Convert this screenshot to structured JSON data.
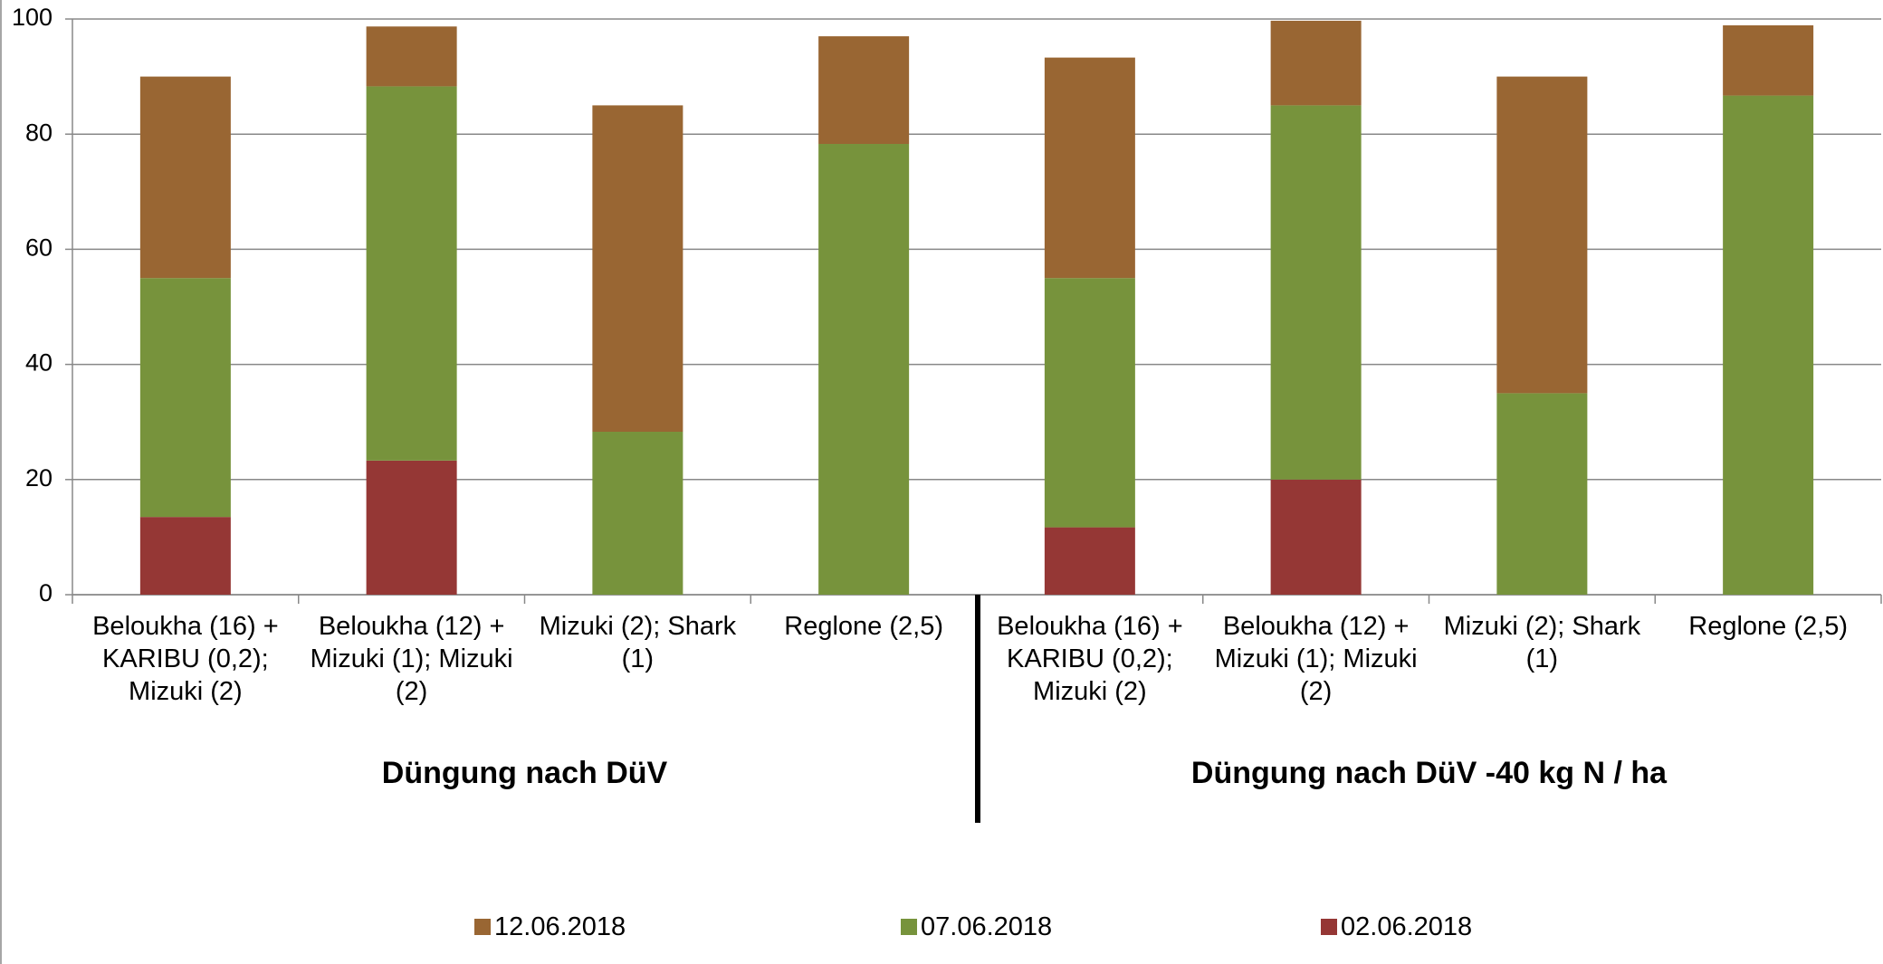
{
  "chart_data": {
    "type": "stacked_bar",
    "categories": [
      "Beloukha (16) + KARIBU (0,2); Mizuki (2)",
      "Beloukha (12) + Mizuki (1); Mizuki (2)",
      "Mizuki (2); Shark (1)",
      "Reglone (2,5)",
      "Beloukha (16) + KARIBU (0,2); Mizuki (2)",
      "Beloukha (12) + Mizuki (1); Mizuki (2)",
      "Mizuki (2); Shark (1)",
      "Reglone (2,5)"
    ],
    "group_labels": [
      "Düngung nach DüV",
      "Düngung nach DüV -40 kg N / ha"
    ],
    "series": [
      {
        "name": "12.06.2018",
        "color": "#996633",
        "values": [
          35,
          10.4,
          56.7,
          18.7,
          38.3,
          14.7,
          55,
          12.2
        ]
      },
      {
        "name": "07.06.2018",
        "color": "#77933c",
        "values": [
          41.5,
          65,
          28.3,
          78.3,
          43.3,
          65,
          35,
          86.7
        ]
      },
      {
        "name": "02.06.2018",
        "color": "#953735",
        "values": [
          13.5,
          23.3,
          0,
          0,
          11.7,
          20,
          0,
          0
        ]
      }
    ],
    "ylim": [
      0,
      100
    ],
    "yticks": [
      0,
      20,
      40,
      60,
      80,
      100
    ],
    "grid": true,
    "legend": "bottom"
  }
}
